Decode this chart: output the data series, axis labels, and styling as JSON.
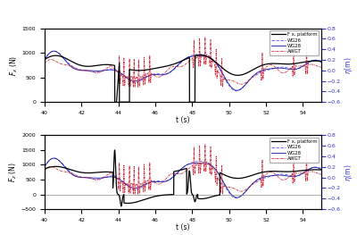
{
  "top_panel": {
    "ylabel_left": "$F_x$ (N)",
    "ylabel_right": "$\\eta$(m)",
    "ylim_left": [
      0,
      1500
    ],
    "ylim_right": [
      -0.6,
      0.8
    ],
    "yticks_left": [
      0,
      500,
      1000,
      1500
    ],
    "yticks_right": [
      -0.6,
      -0.4,
      -0.2,
      0.0,
      0.2,
      0.4,
      0.6,
      0.8
    ],
    "xlabel": "t (s)",
    "xlim": [
      40,
      55
    ],
    "xticks": [
      40,
      42,
      44,
      46,
      48,
      50,
      52,
      54
    ]
  },
  "bottom_panel": {
    "ylabel_left": "$F_z$ (N)",
    "ylabel_right": "$\\eta$(m)",
    "ylim_left": [
      -500,
      2000
    ],
    "ylim_right": [
      -0.6,
      0.8
    ],
    "yticks_left": [
      -500,
      0,
      500,
      1000,
      1500,
      2000
    ],
    "yticks_right": [
      -0.6,
      -0.4,
      -0.2,
      0.0,
      0.2,
      0.4,
      0.6,
      0.8
    ],
    "xlabel": "t (s)",
    "xlim": [
      40,
      55
    ],
    "xticks": [
      40,
      42,
      44,
      46,
      48,
      50,
      52,
      54
    ]
  },
  "colors": {
    "platform": "#000000",
    "WG26": "#5555ee",
    "WG28": "#1111aa",
    "AWGT": "#cc2233",
    "right_axis": "#3333cc"
  },
  "legend_labels": [
    "F x, platform",
    "WG26",
    "WG28",
    "AWGT"
  ]
}
